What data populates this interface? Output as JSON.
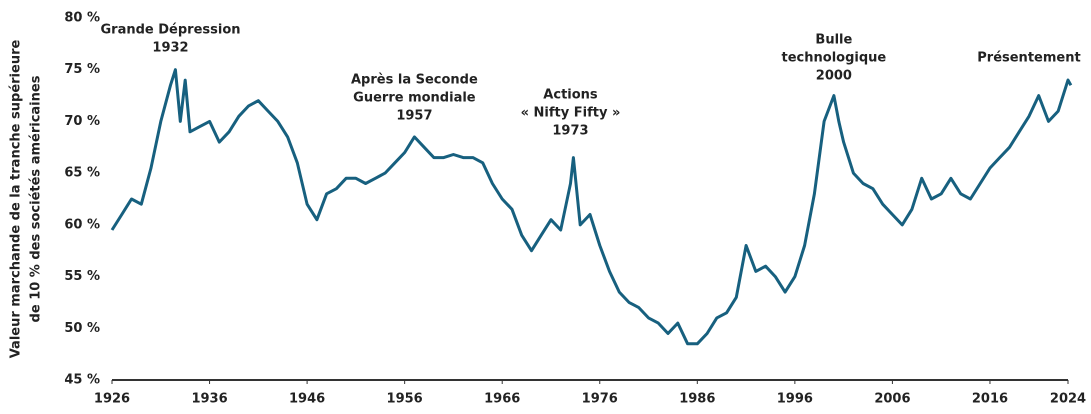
{
  "chart_data": {
    "type": "line",
    "y_label": [
      "Valeur marchande de la tranche supérieure",
      "de 10 % des sociétés américaines"
    ],
    "annotations": [
      {
        "lines": [
          "Grande Dépression",
          "1932"
        ],
        "x": 1932
      },
      {
        "lines": [
          "Après la Seconde",
          "Guerre mondiale",
          "1957"
        ],
        "x": 1957
      },
      {
        "lines": [
          "Actions",
          "« Nifty Fifty »",
          "1973"
        ],
        "x": 1973
      },
      {
        "lines": [
          "Bulle",
          "technologique",
          "2000"
        ],
        "x": 2000
      },
      {
        "lines": [
          "Présentement"
        ],
        "x": 2020
      }
    ],
    "x": [
      1926,
      1927,
      1928,
      1929,
      1930,
      1931,
      1932,
      1932.5,
      1933,
      1933.5,
      1934,
      1935,
      1936,
      1937,
      1938,
      1939,
      1940,
      1941,
      1942,
      1943,
      1944,
      1945,
      1946,
      1947,
      1948,
      1949,
      1950,
      1951,
      1952,
      1953,
      1954,
      1955,
      1956,
      1957,
      1958,
      1959,
      1960,
      1961,
      1962,
      1963,
      1964,
      1965,
      1966,
      1967,
      1968,
      1969,
      1970,
      1971,
      1972,
      1973,
      1973.3,
      1974,
      1975,
      1976,
      1977,
      1978,
      1979,
      1980,
      1981,
      1982,
      1983,
      1984,
      1985,
      1986,
      1987,
      1988,
      1989,
      1990,
      1991,
      1992,
      1993,
      1994,
      1995,
      1996,
      1997,
      1998,
      1999,
      2000,
      2000.5,
      2001,
      2002,
      2003,
      2004,
      2005,
      2006,
      2007,
      2008,
      2009,
      2010,
      2011,
      2012,
      2013,
      2014,
      2015,
      2016,
      2017,
      2018,
      2019,
      2020,
      2021,
      2022,
      2023,
      2024,
      2024.3
    ],
    "series": [
      {
        "name": "Top 10 %",
        "color": "#17607f",
        "values": [
          59.5,
          61,
          62.5,
          62,
          65.5,
          70,
          73.5,
          75,
          70,
          74,
          69,
          69.5,
          70,
          68,
          69,
          70.5,
          71.5,
          72,
          71,
          70,
          68.5,
          66,
          62,
          60.5,
          63,
          63.5,
          64.5,
          64.5,
          64,
          64.5,
          65,
          66,
          67,
          68.5,
          67.5,
          66.5,
          66.5,
          66.8,
          66.5,
          66.5,
          66,
          64,
          62.5,
          61.5,
          59,
          57.5,
          59,
          60.5,
          59.5,
          64,
          66.5,
          60,
          61,
          58,
          55.5,
          53.5,
          52.5,
          52,
          51,
          50.5,
          49.5,
          50.5,
          48.5,
          48.5,
          49.5,
          51,
          51.5,
          53,
          58,
          55.5,
          56,
          55,
          53.5,
          55,
          58,
          63,
          70,
          72.5,
          70,
          68,
          65,
          64,
          63.5,
          62,
          61,
          60,
          61.5,
          64.5,
          62.5,
          63,
          64.5,
          63,
          62.5,
          64,
          65.5,
          66.5,
          67.5,
          69,
          70.5,
          72.5,
          70,
          71,
          74,
          73.5
        ]
      }
    ],
    "xlim": [
      1926,
      2024
    ],
    "xticks": [
      1926,
      1936,
      1946,
      1956,
      1966,
      1976,
      1986,
      1996,
      2006,
      2016,
      2024
    ],
    "ylim": [
      45,
      80
    ],
    "yticks": [
      {
        "value": 45,
        "label": "45 %"
      },
      {
        "value": 50,
        "label": "50 %"
      },
      {
        "value": 55,
        "label": "55 %"
      },
      {
        "value": 60,
        "label": "60 %"
      },
      {
        "value": 65,
        "label": "65 %"
      },
      {
        "value": 70,
        "label": "70 %"
      },
      {
        "value": 75,
        "label": "75 %"
      },
      {
        "value": 80,
        "label": "80 %"
      }
    ],
    "grid": false
  }
}
